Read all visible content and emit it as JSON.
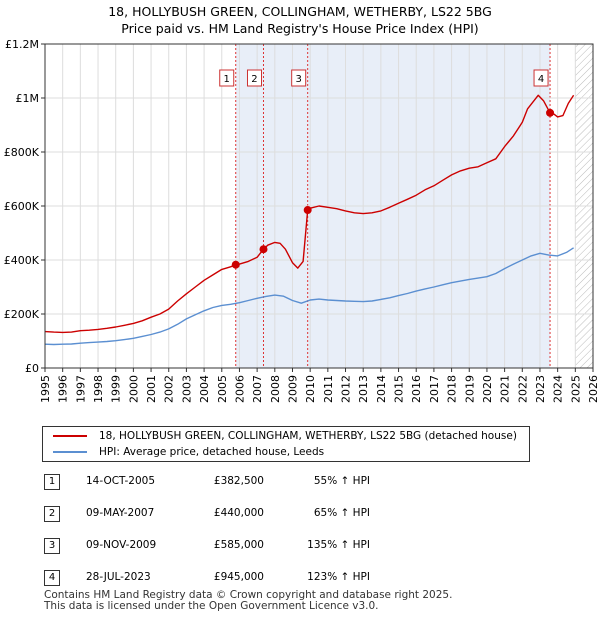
{
  "header": {
    "title_line1": "18, HOLLYBUSH GREEN, COLLINGHAM, WETHERBY, LS22 5BG",
    "title_line2": "Price paid vs. HM Land Registry's House Price Index (HPI)"
  },
  "chart_data": {
    "type": "line",
    "title": "18, HOLLYBUSH GREEN, COLLINGHAM, WETHERBY, LS22 5BG",
    "subtitle": "Price paid vs. HM Land Registry's House Price Index (HPI)",
    "xlim": [
      1995,
      2026
    ],
    "ylim": [
      0,
      1200000
    ],
    "yticks": [
      {
        "value": 0,
        "label": "£0"
      },
      {
        "value": 200000,
        "label": "£200K"
      },
      {
        "value": 400000,
        "label": "£400K"
      },
      {
        "value": 600000,
        "label": "£600K"
      },
      {
        "value": 800000,
        "label": "£800K"
      },
      {
        "value": 1000000,
        "label": "£1M"
      },
      {
        "value": 1200000,
        "label": "£1.2M"
      }
    ],
    "xticks": [
      1995,
      1996,
      1997,
      1998,
      1999,
      2000,
      2001,
      2002,
      2003,
      2004,
      2005,
      2006,
      2007,
      2008,
      2009,
      2010,
      2011,
      2012,
      2013,
      2014,
      2015,
      2016,
      2017,
      2018,
      2019,
      2020,
      2021,
      2022,
      2023,
      2024,
      2025,
      2026
    ],
    "grid": true,
    "highlight_band": [
      2005.79,
      2023.57
    ],
    "future_hatch_from": 2025.0,
    "series": [
      {
        "name": "18, HOLLYBUSH GREEN, COLLINGHAM, WETHERBY, LS22 5BG (detached house)",
        "color": "#cc0000",
        "x": [
          1995.0,
          1995.5,
          1996.0,
          1996.5,
          1997.0,
          1997.5,
          1998.0,
          1998.5,
          1999.0,
          1999.5,
          2000.0,
          2000.5,
          2001.0,
          2001.5,
          2002.0,
          2002.5,
          2003.0,
          2003.5,
          2004.0,
          2004.5,
          2005.0,
          2005.5,
          2005.79,
          2006.0,
          2006.5,
          2007.0,
          2007.36,
          2007.6,
          2008.0,
          2008.3,
          2008.6,
          2009.0,
          2009.3,
          2009.6,
          2009.86,
          2010.0,
          2010.5,
          2011.0,
          2011.5,
          2012.0,
          2012.5,
          2013.0,
          2013.5,
          2014.0,
          2014.5,
          2015.0,
          2015.5,
          2016.0,
          2016.5,
          2017.0,
          2017.5,
          2018.0,
          2018.5,
          2019.0,
          2019.5,
          2020.0,
          2020.5,
          2021.0,
          2021.5,
          2022.0,
          2022.3,
          2022.6,
          2022.9,
          2023.2,
          2023.57,
          2023.8,
          2024.0,
          2024.3,
          2024.6,
          2024.9
        ],
        "values": [
          135000,
          133000,
          132000,
          133000,
          138000,
          140000,
          143000,
          147000,
          152000,
          158000,
          165000,
          175000,
          188000,
          200000,
          218000,
          248000,
          275000,
          300000,
          325000,
          345000,
          365000,
          375000,
          382500,
          385000,
          395000,
          410000,
          440000,
          455000,
          465000,
          462000,
          440000,
          390000,
          370000,
          395000,
          585000,
          592000,
          600000,
          595000,
          590000,
          582000,
          575000,
          572000,
          575000,
          582000,
          595000,
          610000,
          625000,
          640000,
          660000,
          675000,
          695000,
          715000,
          730000,
          740000,
          745000,
          760000,
          775000,
          820000,
          860000,
          910000,
          960000,
          985000,
          1010000,
          990000,
          945000,
          940000,
          930000,
          935000,
          980000,
          1010000
        ]
      },
      {
        "name": "HPI: Average price, detached house, Leeds",
        "color": "#5b8fd1",
        "x": [
          1995.0,
          1995.5,
          1996.0,
          1996.5,
          1997.0,
          1997.5,
          1998.0,
          1998.5,
          1999.0,
          1999.5,
          2000.0,
          2000.5,
          2001.0,
          2001.5,
          2002.0,
          2002.5,
          2003.0,
          2003.5,
          2004.0,
          2004.5,
          2005.0,
          2005.5,
          2006.0,
          2006.5,
          2007.0,
          2007.5,
          2008.0,
          2008.5,
          2009.0,
          2009.5,
          2010.0,
          2010.5,
          2011.0,
          2011.5,
          2012.0,
          2012.5,
          2013.0,
          2013.5,
          2014.0,
          2014.5,
          2015.0,
          2015.5,
          2016.0,
          2016.5,
          2017.0,
          2017.5,
          2018.0,
          2018.5,
          2019.0,
          2019.5,
          2020.0,
          2020.5,
          2021.0,
          2021.5,
          2022.0,
          2022.5,
          2023.0,
          2023.5,
          2024.0,
          2024.5,
          2024.9
        ],
        "values": [
          88000,
          87000,
          88000,
          89000,
          92000,
          94000,
          96000,
          98000,
          101000,
          105000,
          110000,
          117000,
          124000,
          133000,
          145000,
          162000,
          182000,
          197000,
          212000,
          224000,
          232000,
          236000,
          242000,
          250000,
          258000,
          265000,
          270000,
          266000,
          250000,
          240000,
          252000,
          255000,
          252000,
          250000,
          248000,
          247000,
          246000,
          248000,
          254000,
          260000,
          268000,
          276000,
          285000,
          293000,
          300000,
          308000,
          316000,
          322000,
          328000,
          333000,
          338000,
          350000,
          368000,
          385000,
          400000,
          415000,
          425000,
          418000,
          415000,
          428000,
          445000
        ]
      }
    ],
    "sales": [
      {
        "num": "1",
        "x": 2005.79,
        "value": 382500
      },
      {
        "num": "2",
        "x": 2007.36,
        "value": 440000
      },
      {
        "num": "3",
        "x": 2009.86,
        "value": 585000
      },
      {
        "num": "4",
        "x": 2023.57,
        "value": 945000
      }
    ]
  },
  "legend": {
    "property_label": "18, HOLLYBUSH GREEN, COLLINGHAM, WETHERBY, LS22 5BG (detached house)",
    "hpi_label": "HPI: Average price, detached house, Leeds",
    "property_color": "#cc0000",
    "hpi_color": "#5b8fd1"
  },
  "sales_table": [
    {
      "num": "1",
      "date": "14-OCT-2005",
      "price": "£382,500",
      "hpi": "55% ↑ HPI"
    },
    {
      "num": "2",
      "date": "09-MAY-2007",
      "price": "£440,000",
      "hpi": "65% ↑ HPI"
    },
    {
      "num": "3",
      "date": "09-NOV-2009",
      "price": "£585,000",
      "hpi": "135% ↑ HPI"
    },
    {
      "num": "4",
      "date": "28-JUL-2023",
      "price": "£945,000",
      "hpi": "123% ↑ HPI"
    }
  ],
  "footer": {
    "line1": "Contains HM Land Registry data © Crown copyright and database right 2025.",
    "line2": "This data is licensed under the Open Government Licence v3.0."
  }
}
